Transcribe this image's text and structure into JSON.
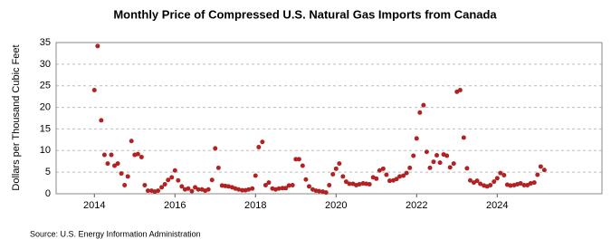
{
  "chart_data": {
    "type": "scatter",
    "title": "Monthly Price of Compressed U.S. Natural Gas Imports from Canada",
    "y_label": "Dollars per Thousand Cubic Feet",
    "source": "Source: U.S. Energy Information Administration",
    "color": "#b22222",
    "grid": true,
    "xlim": [
      2013.05,
      2026.6
    ],
    "xticks": [
      2014,
      2016,
      2018,
      2020,
      2022,
      2024
    ],
    "ylim": [
      0,
      35
    ],
    "yticks": [
      0,
      5,
      10,
      15,
      20,
      25,
      30,
      35
    ],
    "x": [
      2014,
      2014.08,
      2014.17,
      2014.25,
      2014.33,
      2014.42,
      2014.5,
      2014.58,
      2014.67,
      2014.75,
      2014.83,
      2014.92,
      2015,
      2015.08,
      2015.17,
      2015.25,
      2015.33,
      2015.42,
      2015.5,
      2015.58,
      2015.67,
      2015.75,
      2015.83,
      2015.92,
      2016,
      2016.08,
      2016.17,
      2016.25,
      2016.33,
      2016.42,
      2016.5,
      2016.58,
      2016.67,
      2016.75,
      2016.83,
      2016.92,
      2017,
      2017.08,
      2017.17,
      2017.25,
      2017.33,
      2017.42,
      2017.5,
      2017.58,
      2017.67,
      2017.75,
      2017.83,
      2017.92,
      2018,
      2018.08,
      2018.17,
      2018.25,
      2018.33,
      2018.42,
      2018.5,
      2018.58,
      2018.67,
      2018.75,
      2018.83,
      2018.92,
      2019,
      2019.08,
      2019.17,
      2019.25,
      2019.33,
      2019.42,
      2019.5,
      2019.58,
      2019.67,
      2019.75,
      2019.83,
      2019.92,
      2020,
      2020.08,
      2020.17,
      2020.25,
      2020.33,
      2020.42,
      2020.5,
      2020.58,
      2020.67,
      2020.75,
      2020.83,
      2020.92,
      2021,
      2021.08,
      2021.17,
      2021.25,
      2021.33,
      2021.42,
      2021.5,
      2021.58,
      2021.67,
      2021.75,
      2021.83,
      2021.92,
      2022,
      2022.08,
      2022.17,
      2022.25,
      2022.33,
      2022.42,
      2022.5,
      2022.58,
      2022.67,
      2022.75,
      2022.83,
      2022.92,
      2023,
      2023.08,
      2023.17,
      2023.25,
      2023.33,
      2023.42,
      2023.5,
      2023.58,
      2023.67,
      2023.75,
      2023.83,
      2023.92,
      2024,
      2024.08,
      2024.17,
      2024.25,
      2024.33,
      2024.42,
      2024.5,
      2024.58,
      2024.67,
      2024.75,
      2024.83,
      2024.92,
      2025,
      2025.08,
      2025.17
    ],
    "values": [
      24,
      34.2,
      17,
      9,
      7,
      9,
      6.5,
      7,
      4.7,
      2,
      4,
      12.2,
      9,
      9.2,
      8.5,
      2,
      0.7,
      0.7,
      0.5,
      0.7,
      1.5,
      2.2,
      3.2,
      3.8,
      5.4,
      3.1,
      1.7,
      1,
      1.2,
      0.6,
      1.5,
      1,
      1,
      0.7,
      1,
      3.2,
      10.5,
      6,
      1.9,
      1.8,
      1.7,
      1.5,
      1.2,
      1,
      0.8,
      0.8,
      1,
      1.2,
      4.2,
      10.8,
      12,
      2,
      2.6,
      1.2,
      1,
      1.2,
      1.3,
      1.3,
      1.9,
      2,
      8,
      8,
      6.5,
      3.3,
      1.7,
      1,
      0.7,
      0.6,
      0.5,
      0.3,
      2,
      4.5,
      5.8,
      7,
      4,
      2.8,
      2.3,
      2.3,
      2,
      2.2,
      2.4,
      2.3,
      2.2,
      3.8,
      3.5,
      5.4,
      5.8,
      4.4,
      3,
      3.1,
      3.4,
      4,
      4.2,
      4.8,
      6,
      8.8,
      12.8,
      18.8,
      20.5,
      9.7,
      6,
      7.4,
      8.9,
      7.2,
      9.1,
      8.8,
      6.1,
      7,
      23.6,
      24,
      13,
      5.9,
      3.1,
      2.6,
      3,
      2.3,
      1.9,
      1.7,
      2,
      2.8,
      3.6,
      4.8,
      4.3,
      2.1,
      1.9,
      2,
      2.2,
      2.4,
      2,
      2,
      2.4,
      2.6,
      4.4,
      6.3,
      5.5
    ]
  }
}
